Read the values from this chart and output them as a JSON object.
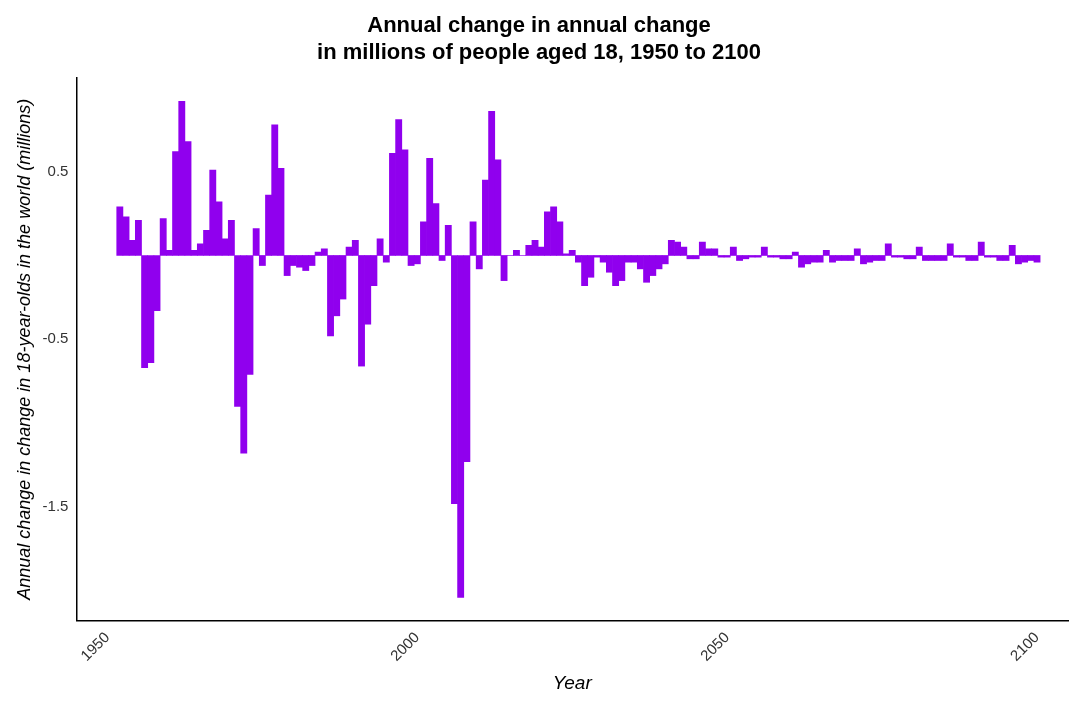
{
  "chart_data": {
    "type": "bar",
    "title": "Annual change in annual change\nin millions of people aged 18, 1950 to 2100",
    "xlabel": "Year",
    "ylabel": "Annual change in change in 18-year-olds in the world (millions)",
    "color": "#9000ee",
    "x": [
      1952,
      1953,
      1954,
      1955,
      1956,
      1957,
      1958,
      1959,
      1960,
      1961,
      1962,
      1963,
      1964,
      1965,
      1966,
      1967,
      1968,
      1969,
      1970,
      1971,
      1972,
      1973,
      1974,
      1975,
      1976,
      1977,
      1978,
      1979,
      1980,
      1981,
      1982,
      1983,
      1984,
      1985,
      1986,
      1987,
      1988,
      1989,
      1990,
      1991,
      1992,
      1993,
      1994,
      1995,
      1996,
      1997,
      1998,
      1999,
      2000,
      2001,
      2002,
      2003,
      2004,
      2005,
      2006,
      2007,
      2008,
      2009,
      2010,
      2011,
      2012,
      2013,
      2014,
      2015,
      2016,
      2017,
      2018,
      2019,
      2020,
      2021,
      2022,
      2023,
      2024,
      2025,
      2026,
      2027,
      2028,
      2029,
      2030,
      2031,
      2032,
      2033,
      2034,
      2035,
      2036,
      2037,
      2038,
      2039,
      2040,
      2041,
      2042,
      2043,
      2044,
      2045,
      2046,
      2047,
      2048,
      2049,
      2050,
      2051,
      2052,
      2053,
      2054,
      2055,
      2056,
      2057,
      2058,
      2059,
      2060,
      2061,
      2062,
      2063,
      2064,
      2065,
      2066,
      2067,
      2068,
      2069,
      2070,
      2071,
      2072,
      2073,
      2074,
      2075,
      2076,
      2077,
      2078,
      2079,
      2080,
      2081,
      2082,
      2083,
      2084,
      2085,
      2086,
      2087,
      2088,
      2089,
      2090,
      2091,
      2092,
      2093,
      2094,
      2095,
      2096,
      2097,
      2098,
      2099,
      2100
    ],
    "values": [
      0.29,
      0.23,
      0.09,
      0.21,
      -0.67,
      -0.64,
      -0.33,
      0.22,
      0.03,
      0.62,
      0.92,
      0.68,
      0.03,
      0.07,
      0.15,
      0.51,
      0.32,
      0.1,
      0.21,
      -0.9,
      -1.18,
      -0.71,
      0.16,
      -0.06,
      0.36,
      0.78,
      0.52,
      -0.12,
      -0.06,
      -0.07,
      -0.09,
      -0.06,
      0.02,
      0.04,
      -0.48,
      -0.36,
      -0.26,
      0.05,
      0.09,
      -0.66,
      -0.41,
      -0.18,
      0.1,
      -0.04,
      0.61,
      0.81,
      0.63,
      -0.06,
      -0.05,
      0.2,
      0.58,
      0.31,
      -0.03,
      0.18,
      -1.48,
      -2.04,
      -1.23,
      0.2,
      -0.08,
      0.45,
      0.86,
      0.57,
      -0.15,
      0,
      0.03,
      0,
      0.06,
      0.09,
      0.05,
      0.26,
      0.29,
      0.2,
      0.01,
      0.03,
      -0.04,
      -0.18,
      -0.13,
      -0.01,
      -0.04,
      -0.1,
      -0.18,
      -0.15,
      -0.04,
      -0.04,
      -0.08,
      -0.16,
      -0.12,
      -0.08,
      -0.05,
      0.09,
      0.08,
      0.05,
      -0.02,
      -0.02,
      0.08,
      0.04,
      0.04,
      -0.01,
      -0.01,
      0.05,
      -0.03,
      -0.02,
      -0.01,
      -0.01,
      0.05,
      -0.01,
      -0.01,
      -0.02,
      -0.02,
      0.02,
      -0.07,
      -0.05,
      -0.04,
      -0.04,
      0.03,
      -0.04,
      -0.03,
      -0.03,
      -0.03,
      0.04,
      -0.05,
      -0.04,
      -0.03,
      -0.03,
      0.07,
      -0.01,
      -0.01,
      -0.02,
      -0.02,
      0.05,
      -0.03,
      -0.03,
      -0.03,
      -0.03,
      0.07,
      -0.01,
      -0.01,
      -0.03,
      -0.03,
      0.08,
      -0.01,
      -0.01,
      -0.03,
      -0.03,
      0.06,
      -0.05,
      -0.04,
      -0.03,
      -0.04
    ],
    "xlim": [
      1945,
      2105
    ],
    "xticks": [
      1950,
      2000,
      2050,
      2100
    ],
    "ylim": [
      -2.18,
      1.06
    ],
    "yticks": [
      -1.5,
      -0.5,
      0.5
    ],
    "grid": false,
    "legend": false
  }
}
